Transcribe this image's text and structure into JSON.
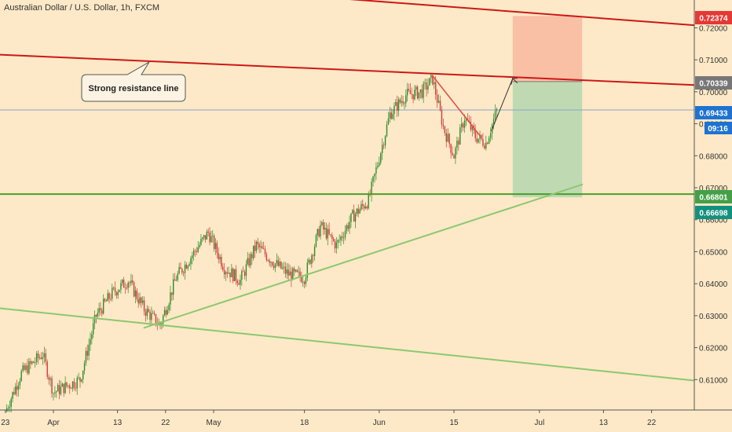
{
  "header": {
    "title": "Australian Dollar / U.S. Dollar, 1h, FXCM"
  },
  "annotation": {
    "text": "Strong resistance line"
  },
  "countdown": {
    "text": "09:16"
  },
  "colors": {
    "background": "#fde9c7",
    "resistance": "#cc1818",
    "support": "#4a9e28",
    "trendline": "#8cc870",
    "candle_up": "#2e8b2e",
    "candle_down": "#d23b3b",
    "stop_zone": "#f8b8a0",
    "target_zone": "#b8d8b0",
    "price_line": "#8aa4c8"
  },
  "chart_data": {
    "type": "candlestick",
    "title": "Australian Dollar / U.S. Dollar, 1h, FXCM",
    "symbol": "AUD/USD",
    "timeframe": "1h",
    "x_tick_labels": [
      "23",
      "Apr",
      "13",
      "22",
      "May",
      "18",
      "Jun",
      "15",
      "Jul",
      "13",
      "22"
    ],
    "x_tick_dates": [
      "2020-03-23",
      "2020-04-01",
      "2020-04-13",
      "2020-04-22",
      "2020-05-01",
      "2020-05-18",
      "2020-06-01",
      "2020-06-15",
      "2020-07-01",
      "2020-07-13",
      "2020-07-22"
    ],
    "x_range": [
      "2020-03-22",
      "2020-07-30"
    ],
    "y_range": [
      0.6005,
      0.7287
    ],
    "y_tick_values": [
      0.61,
      0.62,
      0.63,
      0.64,
      0.65,
      0.66,
      0.67,
      0.68,
      0.69,
      0.7,
      0.71,
      0.72
    ],
    "y_tick_labels": [
      "0.61000",
      "0.62000",
      "0.63000",
      "0.64000",
      "0.65000",
      "0.66000",
      "0.67000",
      "0.68000",
      "0.69000",
      "0.70000",
      "0.71000",
      "0.72000"
    ],
    "price_path": [
      [
        "2020-03-23",
        0.6
      ],
      [
        "2020-03-26",
        0.612
      ],
      [
        "2020-03-30",
        0.618
      ],
      [
        "2020-04-01",
        0.606
      ],
      [
        "2020-04-06",
        0.61
      ],
      [
        "2020-04-09",
        0.63
      ],
      [
        "2020-04-12",
        0.637
      ],
      [
        "2020-04-15",
        0.641
      ],
      [
        "2020-04-18",
        0.632
      ],
      [
        "2020-04-21",
        0.627
      ],
      [
        "2020-04-24",
        0.642
      ],
      [
        "2020-04-27",
        0.649
      ],
      [
        "2020-04-30",
        0.656
      ],
      [
        "2020-05-03",
        0.645
      ],
      [
        "2020-05-06",
        0.641
      ],
      [
        "2020-05-09",
        0.652
      ],
      [
        "2020-05-12",
        0.647
      ],
      [
        "2020-05-15",
        0.643
      ],
      [
        "2020-05-18",
        0.642
      ],
      [
        "2020-05-21",
        0.658
      ],
      [
        "2020-05-24",
        0.652
      ],
      [
        "2020-05-27",
        0.661
      ],
      [
        "2020-05-30",
        0.666
      ],
      [
        "2020-06-03",
        0.693
      ],
      [
        "2020-06-06",
        0.699
      ],
      [
        "2020-06-09",
        0.7
      ],
      [
        "2020-06-11",
        0.704
      ],
      [
        "2020-06-13",
        0.689
      ],
      [
        "2020-06-15",
        0.68
      ],
      [
        "2020-06-17",
        0.692
      ],
      [
        "2020-06-19",
        0.686
      ],
      [
        "2020-06-21",
        0.684
      ],
      [
        "2020-06-23",
        0.694
      ]
    ],
    "lines": [
      {
        "name": "upper-resistance",
        "role": "resistance",
        "from": [
          "2020-03-22",
          0.7372
        ],
        "to": [
          "2020-07-30",
          0.7208
        ]
      },
      {
        "name": "strong-resistance",
        "role": "resistance",
        "from": [
          "2020-03-22",
          0.7116
        ],
        "to": [
          "2020-07-30",
          0.7021
        ]
      },
      {
        "name": "support",
        "role": "support",
        "from": [
          "2020-03-22",
          0.668
        ],
        "to": [
          "2020-07-30",
          0.668
        ]
      },
      {
        "name": "uptrend",
        "role": "trendline",
        "from": [
          "2020-04-18",
          0.6262
        ],
        "to": [
          "2020-07-09",
          0.671
        ]
      },
      {
        "name": "long-downtrend",
        "role": "trendline",
        "from": [
          "2020-03-22",
          0.6323
        ],
        "to": [
          "2020-07-30",
          0.6097
        ]
      }
    ],
    "pattern": [
      {
        "name": "wedge-upper",
        "from": [
          "2020-06-11",
          0.705
        ],
        "to": [
          "2020-06-20",
          0.686
        ]
      },
      {
        "name": "projection",
        "from": [
          "2020-06-22",
          0.6877
        ],
        "to": [
          "2020-06-26",
          0.7042
        ]
      }
    ],
    "position": {
      "from_date": "2020-06-26",
      "to_date": "2020-07-09",
      "entry": 0.7032,
      "stop": 0.7237,
      "target": 0.667
    },
    "price_tags": [
      {
        "value": 0.72374,
        "label": "0.72374",
        "color": "#e53935"
      },
      {
        "value": 0.70339,
        "label": "0.70339",
        "color": "#777777"
      },
      {
        "value": 0.69433,
        "label": "0.69433",
        "color": "#1e73d0"
      },
      {
        "value": 0.66801,
        "label": "0.66801",
        "color": "#43a047"
      },
      {
        "value": 0.66698,
        "label": "0.66698",
        "color": "#14917e"
      }
    ],
    "current_price": 0.69433
  }
}
